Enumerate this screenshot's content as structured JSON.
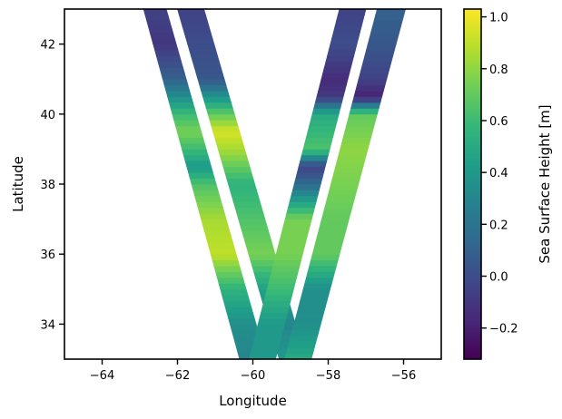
{
  "chart_data": {
    "type": "heatmap",
    "title": "",
    "xlabel": "Longitude",
    "ylabel": "Latitude",
    "xlim": [
      -65,
      -55
    ],
    "ylim": [
      33,
      43
    ],
    "x_ticks": [
      -64,
      -62,
      -60,
      -58,
      -56
    ],
    "x_tick_labels": [
      "−64",
      "−62",
      "−60",
      "−58",
      "−56"
    ],
    "y_ticks": [
      34,
      36,
      38,
      40,
      42
    ],
    "y_tick_labels": [
      "34",
      "36",
      "38",
      "40",
      "42"
    ],
    "grid": false,
    "colormap": "viridis",
    "colorbar": {
      "label": "Sea Surface Height [m]",
      "range": [
        -0.32,
        1.03
      ],
      "ticks": [
        -0.2,
        0.0,
        0.2,
        0.4,
        0.6,
        0.8,
        1.0
      ],
      "tick_labels": [
        "−0.2",
        "0.0",
        "0.2",
        "0.4",
        "0.6",
        "0.8",
        "1.0"
      ]
    },
    "swaths": [
      {
        "name": "",
        "polygon": [
          [
            -62.9,
            43
          ],
          [
            -62.3,
            43
          ],
          [
            -59.65,
            33
          ],
          [
            -60.35,
            33
          ]
        ],
        "profile": [
          [
            33,
            0.3
          ],
          [
            34,
            0.35
          ],
          [
            35,
            0.55
          ],
          [
            36,
            0.9
          ],
          [
            37,
            0.85
          ],
          [
            38,
            0.65
          ],
          [
            38.5,
            0.4
          ],
          [
            39,
            0.6
          ],
          [
            39.5,
            0.75
          ],
          [
            40,
            0.6
          ],
          [
            41,
            0.1
          ],
          [
            42,
            -0.1
          ],
          [
            43,
            -0.05
          ]
        ]
      },
      {
        "name": "",
        "polygon": [
          [
            -62.0,
            43
          ],
          [
            -61.3,
            43
          ],
          [
            -58.6,
            33
          ],
          [
            -59.3,
            33
          ]
        ],
        "profile": [
          [
            33,
            0.4
          ],
          [
            34,
            0.3
          ],
          [
            35,
            0.45
          ],
          [
            36,
            0.75
          ],
          [
            37,
            0.65
          ],
          [
            38,
            0.55
          ],
          [
            39,
            0.85
          ],
          [
            39.5,
            0.95
          ],
          [
            40,
            0.7
          ],
          [
            41,
            0.05
          ],
          [
            42,
            0.0
          ],
          [
            43,
            -0.05
          ]
        ]
      },
      {
        "name": "",
        "polygon": [
          [
            -57.7,
            43
          ],
          [
            -57.0,
            43
          ],
          [
            -59.4,
            33
          ],
          [
            -60.1,
            33
          ]
        ],
        "profile": [
          [
            33,
            0.4
          ],
          [
            34,
            0.4
          ],
          [
            35,
            0.6
          ],
          [
            36,
            0.75
          ],
          [
            37,
            0.75
          ],
          [
            38,
            0.15
          ],
          [
            38.5,
            -0.05
          ],
          [
            39,
            0.65
          ],
          [
            40,
            0.5
          ],
          [
            40.5,
            -0.1
          ],
          [
            41,
            -0.15
          ],
          [
            42,
            0.0
          ],
          [
            43,
            -0.05
          ]
        ]
      },
      {
        "name": "",
        "polygon": [
          [
            -56.7,
            43
          ],
          [
            -55.95,
            43
          ],
          [
            -58.45,
            33
          ],
          [
            -59.15,
            33
          ]
        ],
        "profile": [
          [
            33,
            0.5
          ],
          [
            34,
            0.35
          ],
          [
            35,
            0.35
          ],
          [
            36,
            0.7
          ],
          [
            37,
            0.7
          ],
          [
            38,
            0.75
          ],
          [
            39,
            0.8
          ],
          [
            40,
            0.7
          ],
          [
            40.5,
            -0.2
          ],
          [
            41,
            -0.05
          ],
          [
            42,
            0.05
          ],
          [
            43,
            0.1
          ]
        ]
      }
    ]
  }
}
